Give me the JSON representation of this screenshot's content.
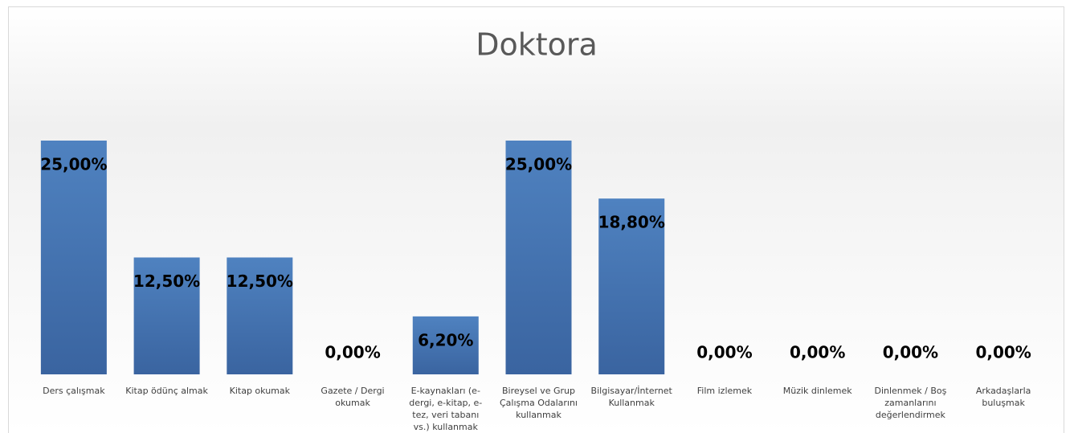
{
  "chart_data": {
    "type": "bar",
    "title": "Doktora",
    "categories": [
      "Ders çalışmak",
      "Kitap ödünç almak",
      "Kitap okumak",
      "Gazete / Dergi okumak",
      "E-kaynakları (e-dergi, e-kitap, e-tez, veri tabanı vs.) kullanmak",
      "Bireysel ve Grup Çalışma Odalarını kullanmak",
      "Bilgisayar/İnternet Kullanmak",
      "Film izlemek",
      "Müzik dinlemek",
      "Dinlenmek / Boş zamanlarını değerlendirmek",
      "Arkadaşlarla buluşmak"
    ],
    "values": [
      25,
      12.5,
      12.5,
      0,
      6.2,
      25,
      18.8,
      0,
      0,
      0,
      0
    ],
    "value_labels": [
      "25,00%",
      "12,50%",
      "12,50%",
      "0,00%",
      "6,20%",
      "25,00%",
      "18,80%",
      "0,00%",
      "0,00%",
      "0,00%",
      "0,00%"
    ],
    "color": "#4a7ab5"
  }
}
